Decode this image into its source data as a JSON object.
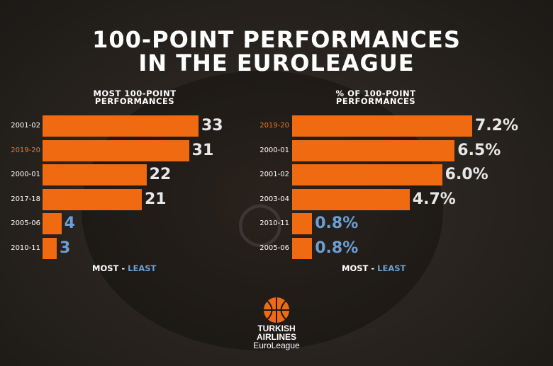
{
  "colors": {
    "bar": "#f06a12",
    "highlight": "#f07a1e",
    "most": "#e8e8e8",
    "least": "#6b9fd6"
  },
  "title_line1": "100-POINT PERFORMANCES",
  "title_line2": "IN THE EUROLEAGUE",
  "legend_most": "MOST",
  "legend_sep": " - ",
  "legend_least": "LEAST",
  "logo": {
    "icon": "basketball-icon",
    "line1": "TURKISH",
    "line2": "AIRLINES",
    "line3": "EuroLeague"
  },
  "chart_data": [
    {
      "type": "bar",
      "orientation": "horizontal",
      "title": "MOST 100-POINT PERFORMANCES",
      "title_line1": "MOST 100-POINT",
      "title_line2": "PERFORMANCES",
      "categories": [
        "2001-02",
        "2019-20",
        "2000-01",
        "2017-18",
        "2005-06",
        "2010-11"
      ],
      "values": [
        33,
        31,
        22,
        21,
        4,
        3
      ],
      "value_labels": [
        "33",
        "31",
        "22",
        "21",
        "4",
        "3"
      ],
      "highlight": [
        "2019-20"
      ],
      "xlim": [
        0,
        33
      ]
    },
    {
      "type": "bar",
      "orientation": "horizontal",
      "title": "% OF 100-POINT PERFORMANCES",
      "title_line1": "% OF 100-POINT",
      "title_line2": "PERFORMANCES",
      "categories": [
        "2019-20",
        "2000-01",
        "2001-02",
        "2003-04",
        "2010-11",
        "2005-06"
      ],
      "values": [
        7.2,
        6.5,
        6.0,
        4.7,
        0.8,
        0.8
      ],
      "value_labels": [
        "7.2%",
        "6.5%",
        "6.0%",
        "4.7%",
        "0.8%",
        "0.8%"
      ],
      "unit": "%",
      "highlight": [
        "2019-20"
      ],
      "xlim": [
        0,
        7.2
      ]
    }
  ]
}
